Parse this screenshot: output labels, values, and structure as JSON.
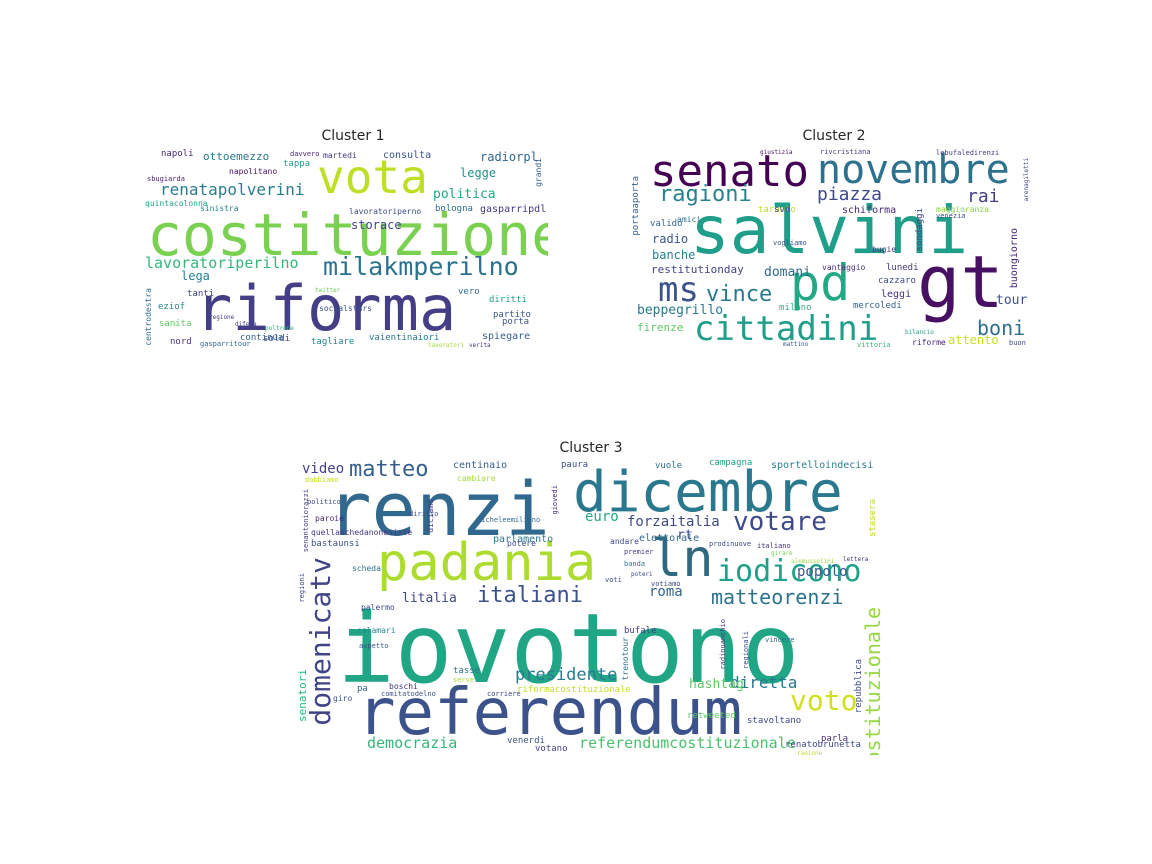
{
  "figure": {
    "panels": [
      {
        "title": "Cluster 1",
        "words": [
          {
            "text": "costituzione",
            "color": "#7ad151"
          },
          {
            "text": "riforma",
            "color": "#433e85"
          },
          {
            "text": "vota",
            "color": "#bddf26"
          },
          {
            "text": "milakmperilno",
            "color": "#2c728e"
          },
          {
            "text": "renatapolverini",
            "color": "#287c8e"
          },
          {
            "text": "lavoratoriperilno",
            "color": "#35b779"
          },
          {
            "text": "ottoemezzo",
            "color": "#2a788e"
          },
          {
            "text": "politica",
            "color": "#22a884"
          },
          {
            "text": "legge",
            "color": "#21918c"
          },
          {
            "text": "radiorpl",
            "color": "#31688e"
          },
          {
            "text": "consulta",
            "color": "#3b528b"
          },
          {
            "text": "napoli",
            "color": "#482878"
          },
          {
            "text": "storace",
            "color": "#414487"
          },
          {
            "text": "lega",
            "color": "#26828e"
          },
          {
            "text": "gasparripdl",
            "color": "#453781"
          },
          {
            "text": "bologna",
            "color": "#2e6e8e"
          },
          {
            "text": "partito",
            "color": "#39568c"
          },
          {
            "text": "diritti",
            "color": "#1fa088"
          },
          {
            "text": "porta",
            "color": "#38588c"
          },
          {
            "text": "spiegare",
            "color": "#365d8d"
          },
          {
            "text": "vaientinaiori",
            "color": "#2a788e"
          },
          {
            "text": "soldi",
            "color": "#3e4989"
          },
          {
            "text": "tagliare",
            "color": "#27808e"
          },
          {
            "text": "continua",
            "color": "#33638d"
          },
          {
            "text": "nord",
            "color": "#46327e"
          },
          {
            "text": "sanita",
            "color": "#5ec962"
          },
          {
            "text": "eziof",
            "color": "#23898e"
          },
          {
            "text": "tanti",
            "color": "#3f4788"
          },
          {
            "text": "quintacolonna",
            "color": "#20a386"
          },
          {
            "text": "napolitano",
            "color": "#471063"
          },
          {
            "text": "socialstars",
            "color": "#3b528b"
          },
          {
            "text": "centrodestra",
            "color": "#2d708e"
          },
          {
            "text": "sinistra",
            "color": "#26828e"
          },
          {
            "text": "vero",
            "color": "#2c728e"
          },
          {
            "text": "tappa",
            "color": "#1f9e89"
          },
          {
            "text": "martedi",
            "color": "#433e85"
          },
          {
            "text": "sbugiarda",
            "color": "#482475"
          },
          {
            "text": "grandi",
            "color": "#355f8d"
          },
          {
            "text": "gasparritour",
            "color": "#31688e"
          },
          {
            "text": "regione",
            "color": "#443983"
          },
          {
            "text": "difesa",
            "color": "#404688"
          },
          {
            "text": "lavoratoriperno",
            "color": "#3d4e8a"
          },
          {
            "text": "davvero",
            "color": "#482878"
          },
          {
            "text": "twitter",
            "color": "#6ece58"
          },
          {
            "text": "verita",
            "color": "#46337e"
          },
          {
            "text": "lavoratori",
            "color": "#a0da39"
          },
          {
            "text": "poltrone",
            "color": "#2eb37c"
          }
        ]
      },
      {
        "title": "Cluster 2",
        "words": [
          {
            "text": "salvini",
            "color": "#1f9e89"
          },
          {
            "text": "senato",
            "color": "#440154"
          },
          {
            "text": "novembre",
            "color": "#2c728e"
          },
          {
            "text": "gt",
            "color": "#471063"
          },
          {
            "text": "pd",
            "color": "#22a884"
          },
          {
            "text": "cittadini",
            "color": "#1f9e89"
          },
          {
            "text": "ms",
            "color": "#3b528b"
          },
          {
            "text": "vince",
            "color": "#2a788e"
          },
          {
            "text": "ragioni",
            "color": "#26828e"
          },
          {
            "text": "piazza",
            "color": "#3e4989"
          },
          {
            "text": "boni",
            "color": "#2e6e8e"
          },
          {
            "text": "rai",
            "color": "#433e85"
          },
          {
            "text": "tour",
            "color": "#3b528b"
          },
          {
            "text": "beppegrillo",
            "color": "#2a788e"
          },
          {
            "text": "domani",
            "color": "#31688e"
          },
          {
            "text": "restitutionday",
            "color": "#414487"
          },
          {
            "text": "banche",
            "color": "#27808e"
          },
          {
            "text": "radio",
            "color": "#39568c"
          },
          {
            "text": "firenze",
            "color": "#5ec962"
          },
          {
            "text": "attento",
            "color": "#c2df23"
          },
          {
            "text": "portaaporta",
            "color": "#365d8d"
          },
          {
            "text": "schiforma",
            "color": "#482878"
          },
          {
            "text": "buongiorno",
            "color": "#482475"
          },
          {
            "text": "valido",
            "color": "#31688e"
          },
          {
            "text": "taranto",
            "color": "#b8de29"
          },
          {
            "text": "amici",
            "color": "#2c728e"
          },
          {
            "text": "svd",
            "color": "#3f4788"
          },
          {
            "text": "leggi",
            "color": "#46327e"
          },
          {
            "text": "lunedi",
            "color": "#453781"
          },
          {
            "text": "cazzaro",
            "color": "#3e4989"
          },
          {
            "text": "mercoledi",
            "color": "#33638d"
          },
          {
            "text": "sondaggi",
            "color": "#414487"
          },
          {
            "text": "riforme",
            "color": "#481f70"
          },
          {
            "text": "milano",
            "color": "#2db27d"
          },
          {
            "text": "vantaggio",
            "color": "#46327e"
          },
          {
            "text": "bugie",
            "color": "#443983"
          },
          {
            "text": "vogliamo",
            "color": "#3b528b"
          },
          {
            "text": "maggioranza",
            "color": "#84d44b"
          },
          {
            "text": "venezia",
            "color": "#3d4e8a"
          },
          {
            "text": "rivcristiana",
            "color": "#414487"
          },
          {
            "text": "giustizia",
            "color": "#471365"
          },
          {
            "text": "lebufaledirenzi",
            "color": "#433e85"
          },
          {
            "text": "arenagiletti",
            "color": "#404688"
          },
          {
            "text": "vittoria",
            "color": "#35b779"
          },
          {
            "text": "mattino",
            "color": "#3b528b"
          },
          {
            "text": "bilancio",
            "color": "#20a386"
          },
          {
            "text": "buon",
            "color": "#3e4989"
          }
        ]
      },
      {
        "title": "Cluster 3",
        "words": [
          {
            "text": "iovotono",
            "color": "#21a685"
          },
          {
            "text": "referendum",
            "color": "#3b528b"
          },
          {
            "text": "renzi",
            "color": "#31688e"
          },
          {
            "text": "dicembre",
            "color": "#2a788e"
          },
          {
            "text": "padania",
            "color": "#addc30"
          },
          {
            "text": "ln",
            "color": "#30697f"
          },
          {
            "text": "domenicatv",
            "color": "#414487"
          },
          {
            "text": "iodicono",
            "color": "#1fa088"
          },
          {
            "text": "votare",
            "color": "#3e4989"
          },
          {
            "text": "voto",
            "color": "#d0e11c"
          },
          {
            "text": "matteo",
            "color": "#355f8d"
          },
          {
            "text": "italiani",
            "color": "#3b528b"
          },
          {
            "text": "matteorenzi",
            "color": "#2c728e"
          },
          {
            "text": "costituzionale",
            "color": "#95d840"
          },
          {
            "text": "presidente",
            "color": "#287c8e"
          },
          {
            "text": "diretta",
            "color": "#2a788e"
          },
          {
            "text": "democrazia",
            "color": "#35b779"
          },
          {
            "text": "referendumcostituzionale",
            "color": "#4ac16d"
          },
          {
            "text": "popolo",
            "color": "#3b528b"
          },
          {
            "text": "forzaitalia",
            "color": "#3e4989"
          },
          {
            "text": "euro",
            "color": "#22a884"
          },
          {
            "text": "roma",
            "color": "#33638d"
          },
          {
            "text": "litalia",
            "color": "#404688"
          },
          {
            "text": "hashtag",
            "color": "#5ec962"
          },
          {
            "text": "video",
            "color": "#433e85"
          },
          {
            "text": "rt",
            "color": "#3e4989"
          },
          {
            "text": "centinaio",
            "color": "#365d8d"
          },
          {
            "text": "sportelloindecisi",
            "color": "#27808e"
          },
          {
            "text": "campagna",
            "color": "#20a386"
          },
          {
            "text": "vuole",
            "color": "#2c728e"
          },
          {
            "text": "paura",
            "color": "#3b528b"
          },
          {
            "text": "stasera",
            "color": "#b8de29"
          },
          {
            "text": "senatori",
            "color": "#2eb37c"
          },
          {
            "text": "parlamento",
            "color": "#2a788e"
          },
          {
            "text": "elettorale",
            "color": "#31688e"
          },
          {
            "text": "bastaunsi",
            "color": "#3b528b"
          },
          {
            "text": "quellaschedanonesiste",
            "color": "#453781"
          },
          {
            "text": "riformacostituzionale",
            "color": "#bddf26"
          },
          {
            "text": "renatobrunetta",
            "color": "#3e4989"
          },
          {
            "text": "votano",
            "color": "#414487"
          },
          {
            "text": "venerdi",
            "color": "#3b528b"
          },
          {
            "text": "bufale",
            "color": "#433e85"
          },
          {
            "text": "tasse",
            "color": "#2c728e"
          },
          {
            "text": "repubblica",
            "color": "#3d4e8a"
          },
          {
            "text": "retweeted",
            "color": "#5ec962"
          },
          {
            "text": "stavoltano",
            "color": "#3e4989"
          },
          {
            "text": "parla",
            "color": "#46327e"
          },
          {
            "text": "potere",
            "color": "#3e4989"
          },
          {
            "text": "diciamo",
            "color": "#453781"
          },
          {
            "text": "aspetto",
            "color": "#3b528b"
          },
          {
            "text": "scheda",
            "color": "#2c728e"
          },
          {
            "text": "palermo",
            "color": "#3e4989"
          },
          {
            "text": "calamari",
            "color": "#26828e"
          },
          {
            "text": "paroie",
            "color": "#482878"
          },
          {
            "text": "dobbiamo",
            "color": "#c8e020"
          },
          {
            "text": "cambiare",
            "color": "#a5db36"
          },
          {
            "text": "andare",
            "color": "#3e4989"
          },
          {
            "text": "pa",
            "color": "#33638d"
          },
          {
            "text": "giro",
            "color": "#3b528b"
          },
          {
            "text": "boschi",
            "color": "#46327e"
          },
          {
            "text": "comitatodelno",
            "color": "#3b528b"
          },
          {
            "text": "corriere",
            "color": "#3e4989"
          },
          {
            "text": "serve",
            "color": "#addc30"
          },
          {
            "text": "trenotour",
            "color": "#2c728e"
          },
          {
            "text": "vincere",
            "color": "#31688e"
          },
          {
            "text": "regionali",
            "color": "#3e4989"
          },
          {
            "text": "radiouanchio",
            "color": "#46337e"
          },
          {
            "text": "voti",
            "color": "#3b528b"
          },
          {
            "text": "banda",
            "color": "#2a788e"
          },
          {
            "text": "premier",
            "color": "#433e85"
          },
          {
            "text": "prodinuove",
            "color": "#3e4989"
          },
          {
            "text": "italiano",
            "color": "#46327e"
          },
          {
            "text": "girare",
            "color": "#7ad151"
          },
          {
            "text": "votiamo",
            "color": "#3e4989"
          },
          {
            "text": "poteri",
            "color": "#414487"
          },
          {
            "text": "ragione",
            "color": "#bddf26"
          },
          {
            "text": "politico",
            "color": "#3e4989"
          },
          {
            "text": "diritto",
            "color": "#3b528b"
          },
          {
            "text": "micheleemiliano",
            "color": "#31688e"
          },
          {
            "text": "senantoniorazzi",
            "color": "#433e85"
          },
          {
            "text": "regioni",
            "color": "#3e4989"
          },
          {
            "text": "giovedi",
            "color": "#482878"
          },
          {
            "text": "lettera",
            "color": "#46327e"
          },
          {
            "text": "alemussolini",
            "color": "#a0da39"
          }
        ]
      }
    ]
  }
}
